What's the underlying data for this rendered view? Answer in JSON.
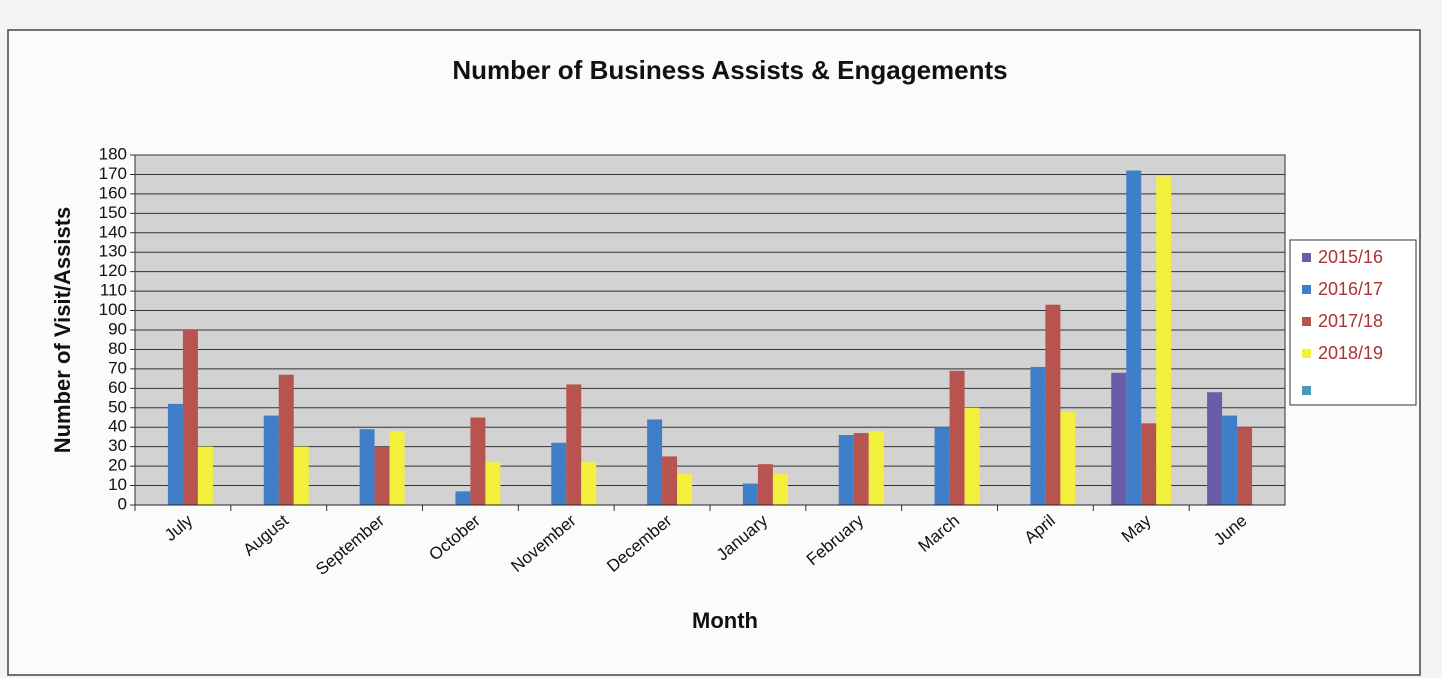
{
  "chart_data": {
    "type": "bar",
    "title": "Number of Business Assists & Engagements",
    "x_label": "Month",
    "y_label": "Number of Visit/Assists",
    "categories": [
      "July",
      "August",
      "September",
      "October",
      "November",
      "December",
      "January",
      "February",
      "March",
      "April",
      "May",
      "June"
    ],
    "series": [
      {
        "name": "2015/16",
        "color": "#6b5ba8",
        "values": [
          null,
          null,
          null,
          null,
          null,
          null,
          null,
          null,
          null,
          null,
          68,
          58
        ]
      },
      {
        "name": "2016/17",
        "color": "#3f7fc9",
        "values": [
          52,
          46,
          39,
          7,
          32,
          44,
          11,
          36,
          40,
          71,
          172,
          46
        ]
      },
      {
        "name": "2017/18",
        "color": "#b85450",
        "values": [
          90,
          67,
          30,
          45,
          62,
          25,
          21,
          37,
          69,
          103,
          42,
          40
        ]
      },
      {
        "name": "2018/19",
        "color": "#f2f03c",
        "values": [
          30,
          30,
          38,
          22,
          22,
          16,
          16,
          38,
          50,
          48,
          169,
          null
        ]
      }
    ],
    "ylim": [
      0,
      180
    ],
    "yticks": [
      0,
      10,
      20,
      30,
      40,
      50,
      60,
      70,
      80,
      90,
      100,
      110,
      120,
      130,
      140,
      150,
      160,
      170,
      180
    ],
    "grid": true,
    "legend": "right"
  }
}
